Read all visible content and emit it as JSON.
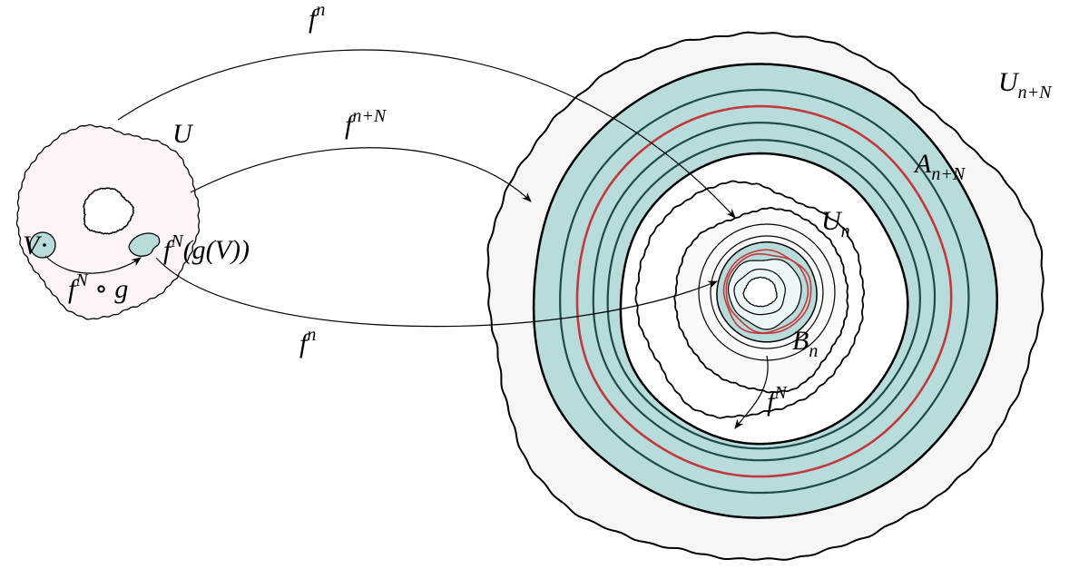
{
  "labels": [
    {
      "base": "f",
      "sup": "n"
    },
    {
      "base": "U"
    },
    {
      "base": "f",
      "sup": "n+N"
    },
    {
      "base": "V"
    },
    {
      "base": "f",
      "sup": "N",
      "rest": "(g(V))"
    },
    {
      "base": "f",
      "sup": "N",
      "rest": " ∘ g"
    },
    {
      "base": "f",
      "sup": "n"
    },
    {
      "base": "U",
      "sub": "n+N"
    },
    {
      "base": "A",
      "sub": "n+N"
    },
    {
      "base": "U",
      "sub": "n"
    },
    {
      "base": "B",
      "sub": "n"
    },
    {
      "base": "f",
      "sup": "N"
    }
  ]
}
